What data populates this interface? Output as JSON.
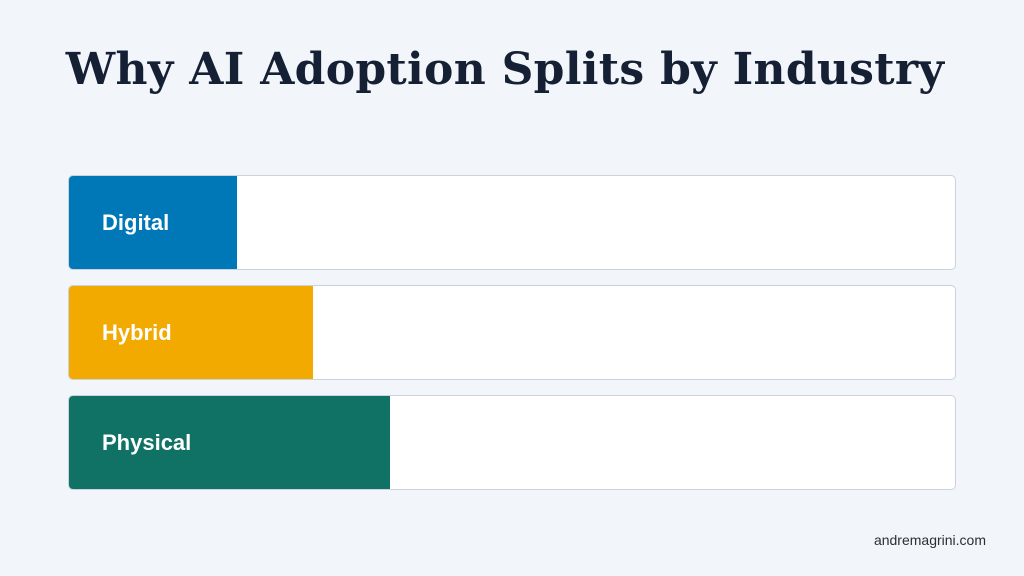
{
  "title": "Why AI Adoption Splits by Industry",
  "rows": [
    {
      "label": "Digital",
      "color": "#0077b6",
      "level": 0.19
    },
    {
      "label": "Hybrid",
      "color": "#f2a900",
      "level": 0.275
    },
    {
      "label": "Physical",
      "color": "#107264",
      "level": 0.362
    }
  ],
  "footer": "andremagrini.com"
}
